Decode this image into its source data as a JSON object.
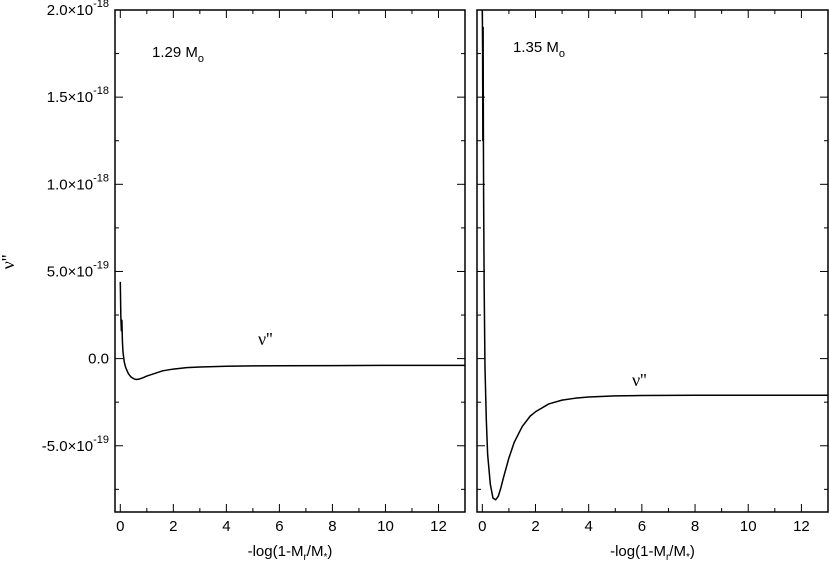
{
  "chart_data": [
    {
      "type": "line",
      "panel": "left",
      "annotation": "1.29 M",
      "annotation_sub": "o",
      "curve_label": "ν''",
      "xlabel": {
        "pre": "-log(1-M",
        "sub1": "r",
        "mid": "/M",
        "sub2": "*",
        "post": ")"
      },
      "ylabel": "ν''",
      "xlim": [
        -0.2,
        13
      ],
      "ylim": [
        -8.8e-19,
        2e-18
      ],
      "x_ticks": [
        0,
        2,
        4,
        6,
        8,
        10,
        12
      ],
      "x_tick_labels": [
        "0",
        "2",
        "4",
        "6",
        "8",
        "10",
        "12"
      ],
      "y_ticks": [
        -5e-19,
        0,
        5e-19,
        1e-18,
        1.5e-18,
        2e-18
      ],
      "y_tick_labels": [
        {
          "mant": "-5.0×10",
          "exp": "-19"
        },
        {
          "mant": "0.0",
          "exp": ""
        },
        {
          "mant": "5.0×10",
          "exp": "-19"
        },
        {
          "mant": "1.0×10",
          "exp": "-18"
        },
        {
          "mant": "1.5×10",
          "exp": "-18"
        },
        {
          "mant": "2.0×10",
          "exp": "-18"
        }
      ],
      "series": [
        {
          "x": [
            0.0,
            0.02,
            0.04,
            0.06,
            0.08,
            0.1,
            0.15,
            0.2,
            0.3,
            0.4,
            0.5,
            0.6,
            0.7,
            0.85,
            1.0,
            1.3,
            1.6,
            2.0,
            2.5,
            3.0,
            4.0,
            5.0,
            6.0,
            8.0,
            10.0,
            13.0
          ],
          "y": [
            4.4e-19,
            2.4e-19,
            1.6e-19,
            2.2e-19,
            1e-19,
            4e-20,
            -2e-20,
            -5e-20,
            -8.5e-20,
            -1.05e-19,
            -1.15e-19,
            -1.2e-19,
            -1.18e-19,
            -1.1e-19,
            -1e-19,
            -8.5e-20,
            -7e-20,
            -6e-20,
            -5.2e-20,
            -4.8e-20,
            -4.4e-20,
            -4.2e-20,
            -4.1e-20,
            -4e-20,
            -3.9e-20,
            -3.9e-20
          ]
        }
      ]
    },
    {
      "type": "line",
      "panel": "right",
      "annotation": "1.35 M",
      "annotation_sub": "o",
      "curve_label": "ν''",
      "xlabel": {
        "pre": "-log(1-M",
        "sub1": "r",
        "mid": "/M",
        "sub2": "*",
        "post": ")"
      },
      "xlim": [
        -0.2,
        13
      ],
      "ylim": [
        -8.8e-19,
        2e-18
      ],
      "x_ticks": [
        0,
        2,
        4,
        6,
        8,
        10,
        12
      ],
      "x_tick_labels": [
        "0",
        "2",
        "4",
        "6",
        "8",
        "10",
        "12"
      ],
      "y_ticks": [
        -5e-19,
        0,
        5e-19,
        1e-18,
        1.5e-18,
        2e-18
      ],
      "series": [
        {
          "x": [
            0.0,
            0.01,
            0.02,
            0.03,
            0.04,
            0.05,
            0.07,
            0.1,
            0.15,
            0.2,
            0.3,
            0.4,
            0.5,
            0.6,
            0.7,
            0.8,
            1.0,
            1.2,
            1.5,
            1.8,
            2.0,
            2.5,
            3.0,
            3.5,
            4.0,
            5.0,
            6.0,
            7.0,
            8.0,
            10.0,
            13.0
          ],
          "y": [
            2e-18,
            1.8e-18,
            1.25e-18,
            1.9e-18,
            1.3e-18,
            9e-19,
            4e-19,
            -5e-20,
            -3.5e-19,
            -5.5e-19,
            -7.2e-19,
            -8e-19,
            -8.1e-19,
            -7.9e-19,
            -7.4e-19,
            -6.8e-19,
            -5.7e-19,
            -4.8e-19,
            -3.9e-19,
            -3.3e-19,
            -3.05e-19,
            -2.6e-19,
            -2.38e-19,
            -2.27e-19,
            -2.2e-19,
            -2.14e-19,
            -2.12e-19,
            -2.11e-19,
            -2.1e-19,
            -2.1e-19,
            -2.1e-19
          ]
        }
      ]
    }
  ]
}
